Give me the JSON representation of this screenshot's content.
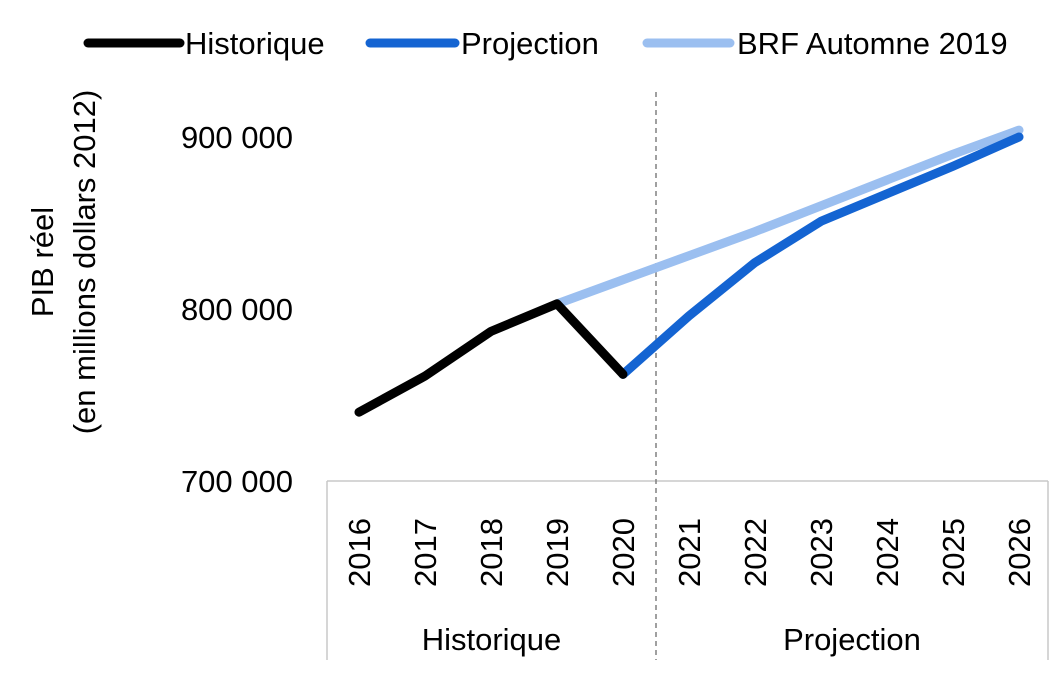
{
  "chart_data": {
    "type": "line",
    "ylabel": [
      "PIB réel",
      "(en millions dollars 2012)"
    ],
    "ylim": [
      700000,
      900000
    ],
    "yticks": [
      700000,
      800000,
      900000
    ],
    "ytick_labels": [
      "700 000",
      "800 000",
      "900 000"
    ],
    "categories": [
      "2016",
      "2017",
      "2018",
      "2019",
      "2020",
      "2021",
      "2022",
      "2023",
      "2024",
      "2025",
      "2026"
    ],
    "groups": [
      {
        "label": "Historique",
        "from": "2016",
        "to": "2020"
      },
      {
        "label": "Projection",
        "from": "2021",
        "to": "2026"
      }
    ],
    "divider_after": "2020",
    "legend": {
      "position": "top"
    },
    "series": [
      {
        "name": "Historique",
        "color": "#000000",
        "x": [
          "2016",
          "2017",
          "2018",
          "2019",
          "2020"
        ],
        "values": [
          740000,
          761000,
          787000,
          803000,
          762000
        ]
      },
      {
        "name": "Projection",
        "color": "#1464d2",
        "x": [
          "2020",
          "2021",
          "2022",
          "2023",
          "2024",
          "2025",
          "2026"
        ],
        "values": [
          762000,
          796000,
          827000,
          851000,
          867000,
          883000,
          900000
        ]
      },
      {
        "name": "BRF Automne 2019",
        "color": "#9bbff0",
        "x": [
          "2019",
          "2020",
          "2021",
          "2022",
          "2023",
          "2024",
          "2025",
          "2026"
        ],
        "values": [
          803000,
          817000,
          831000,
          845000,
          860000,
          875000,
          890000,
          904000
        ]
      }
    ]
  }
}
